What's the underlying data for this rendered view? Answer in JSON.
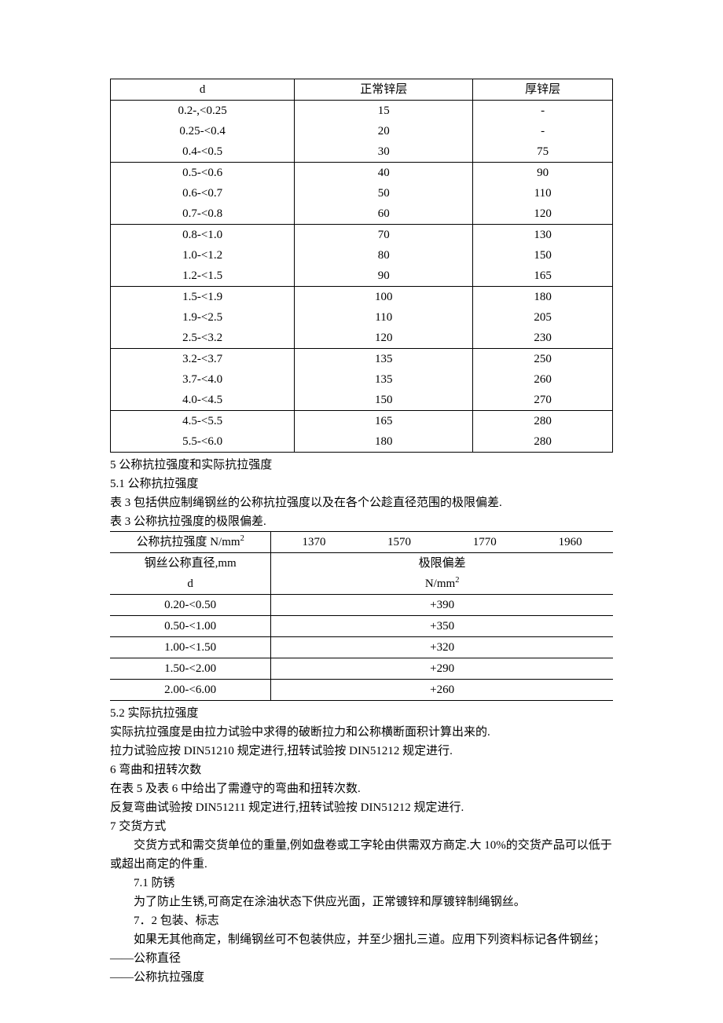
{
  "table1": {
    "headers": [
      "d",
      "正常锌层",
      "厚锌层"
    ],
    "groups": [
      [
        [
          "0.2-,<0.25",
          "15",
          "-"
        ],
        [
          "0.25-<0.4",
          "20",
          "-"
        ],
        [
          "0.4-<0.5",
          "30",
          "75"
        ]
      ],
      [
        [
          "0.5-<0.6",
          "40",
          "90"
        ],
        [
          "0.6-<0.7",
          "50",
          "110"
        ],
        [
          "0.7-<0.8",
          "60",
          "120"
        ]
      ],
      [
        [
          "0.8-<1.0",
          "70",
          "130"
        ],
        [
          "1.0-<1.2",
          "80",
          "150"
        ],
        [
          "1.2-<1.5",
          "90",
          "165"
        ]
      ],
      [
        [
          "1.5-<1.9",
          "100",
          "180"
        ],
        [
          "1.9-<2.5",
          "110",
          "205"
        ],
        [
          "2.5-<3.2",
          "120",
          "230"
        ]
      ],
      [
        [
          "3.2-<3.7",
          "135",
          "250"
        ],
        [
          "3.7-<4.0",
          "135",
          "260"
        ],
        [
          "4.0-<4.5",
          "150",
          "270"
        ]
      ],
      [
        [
          "4.5-<5.5",
          "165",
          "280"
        ],
        [
          "5.5-<6.0",
          "180",
          "280"
        ]
      ]
    ]
  },
  "text1": {
    "l1": "5 公称抗拉强度和实际抗拉强度",
    "l2": "5.1 公称抗拉强度",
    "l3": "表 3 包括供应制绳钢丝的公称抗拉强度以及在各个公趁直径范围的极限偏差.",
    "l4": "表 3 公称抗拉强度的极限偏差."
  },
  "table2": {
    "h1": "公称抗拉强度 N/mm",
    "sup": "2",
    "strengths": [
      "1370",
      "1570",
      "1770",
      "1960"
    ],
    "h2a": "钢丝公称直径,mm",
    "h2b": "极限偏差",
    "h3a": "d",
    "h3b": "N/mm",
    "rows": [
      [
        "0.20-<0.50",
        "+390"
      ],
      [
        "0.50-<1.00",
        "+350"
      ],
      [
        "1.00-<1.50",
        "+320"
      ],
      [
        "1.50-<2.00",
        "+290"
      ],
      [
        "2.00-<6.00",
        "+260"
      ]
    ]
  },
  "text2": {
    "l1": "5.2 实际抗拉强度",
    "l2": "实际抗拉强度是由拉力试验中求得的破断拉力和公称横断面积计算出来的.",
    "l3": "拉力试验应按 DIN51210 规定进行,扭转试验按 DIN51212 规定进行.",
    "l4": "6 弯曲和扭转次数",
    "l5": "在表 5 及表 6 中给出了需遵守的弯曲和扭转次数.",
    "l6": "反复弯曲试验按 DIN51211 规定进行,扭转试验按 DIN51212 规定进行.",
    "l7": "7 交货方式",
    "l8": "交货方式和需交货单位的重量,例如盘卷或工字轮由供需双方商定.大 10%的交货产品可以低于或超出商定的件重.",
    "l9": "7.1 防锈",
    "l10": "为了防止生锈,可商定在涂油状态下供应光面，正常镀锌和厚镀锌制绳钢丝。",
    "l11": "7．2 包装、标志",
    "l12": "如果无其他商定，制绳钢丝可不包装供应，并至少捆扎三道。应用下列资料标记各件钢丝；",
    "l13": "——公称直径",
    "l14": "——公称抗拉强度"
  }
}
